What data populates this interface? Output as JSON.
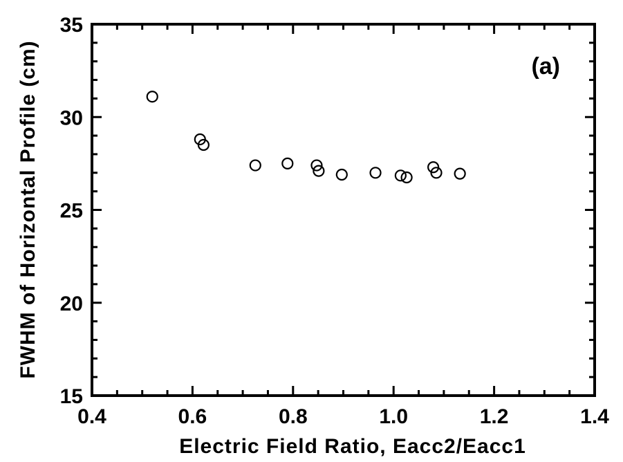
{
  "chart_data": {
    "type": "scatter",
    "title": "",
    "panel_label": "(a)",
    "xlabel": "Electric Field Ratio, Eacc2/Eacc1",
    "ylabel": "FWHM of Horizontal Profile (cm)",
    "xlim": [
      0.4,
      1.4
    ],
    "ylim": [
      15,
      35
    ],
    "x_ticks": [
      "0.4",
      "0.6",
      "0.8",
      "1.0",
      "1.2",
      "1.4"
    ],
    "y_ticks": [
      "15",
      "20",
      "25",
      "30",
      "35"
    ],
    "grid": false,
    "marker": "open-circle",
    "series": [
      {
        "points": [
          {
            "x": 0.52,
            "y": 31.1
          },
          {
            "x": 0.615,
            "y": 28.8
          },
          {
            "x": 0.622,
            "y": 28.5
          },
          {
            "x": 0.725,
            "y": 27.4
          },
          {
            "x": 0.789,
            "y": 27.5
          },
          {
            "x": 0.847,
            "y": 27.4
          },
          {
            "x": 0.851,
            "y": 27.1
          },
          {
            "x": 0.897,
            "y": 26.9
          },
          {
            "x": 0.964,
            "y": 27.0
          },
          {
            "x": 1.014,
            "y": 26.85
          },
          {
            "x": 1.026,
            "y": 26.75
          },
          {
            "x": 1.079,
            "y": 27.3
          },
          {
            "x": 1.085,
            "y": 27.0
          },
          {
            "x": 1.132,
            "y": 26.95
          }
        ]
      }
    ]
  }
}
